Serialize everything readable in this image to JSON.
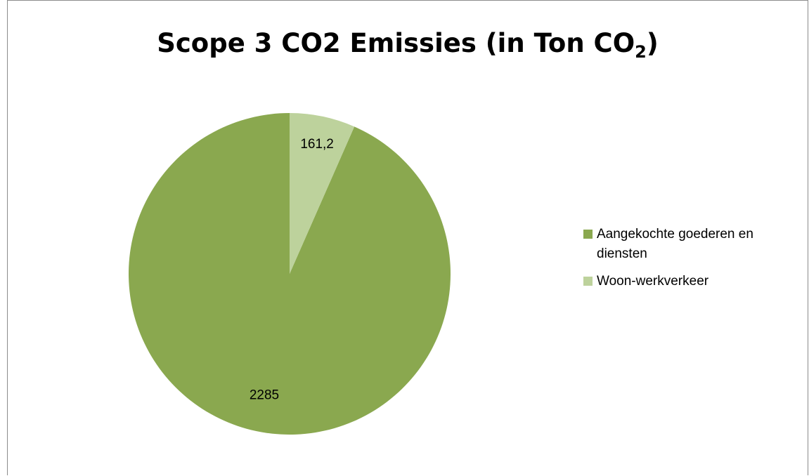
{
  "chart_data": {
    "type": "pie",
    "title": "Scope 3 CO2 Emissies (in Ton CO",
    "title_subscript": "2",
    "title_suffix": ")",
    "categories": [
      "Aangekochte goederen en diensten",
      "Woon-werkverkeer"
    ],
    "values": [
      2285,
      161.2
    ],
    "data_labels": [
      "2285",
      "161,2"
    ],
    "colors": [
      "#8aa84f",
      "#bdd29c"
    ],
    "start_angle": "12 o'clock",
    "direction": "counterclockwise",
    "legend_position": "right"
  }
}
